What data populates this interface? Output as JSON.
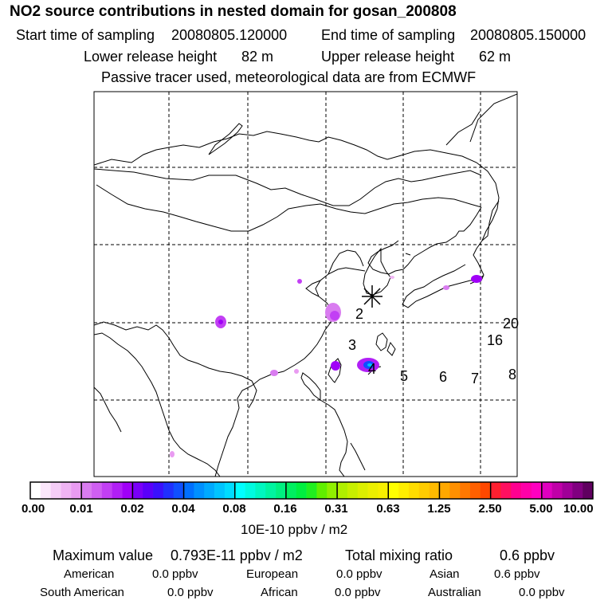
{
  "header": {
    "title": "NO2 source contributions in nested domain for gosan_200808",
    "start_time_label": "Start time of sampling",
    "start_time": "20080805.120000",
    "end_time_label": "End time of sampling",
    "end_time": "20080805.150000",
    "lower_height_label": "Lower release height",
    "lower_height": "82 m",
    "upper_height_label": "Upper release height",
    "upper_height": "62 m",
    "note": "Passive tracer used, meteorological data are from ECMWF"
  },
  "map": {
    "trajectory_markers": [
      "2",
      "3",
      "4",
      "5",
      "6",
      "7",
      "8",
      "16",
      "20"
    ],
    "receptor_symbol": "gosan-receptor-star"
  },
  "colorbar": {
    "labels": [
      "0.00",
      "0.01",
      "0.02",
      "0.04",
      "0.08",
      "0.16",
      "0.31",
      "0.63",
      "1.25",
      "2.50",
      "5.00",
      "10.00"
    ],
    "units": "10E-10 ppbv / m2",
    "colors": [
      [
        "#ffffff",
        "#fbe6fb",
        "#f5cdf7",
        "#efb4f3",
        "#e99bf1"
      ],
      [
        "#d97cf0",
        "#cf5ff2",
        "#c23ff4",
        "#b11ff6",
        "#a000f7"
      ],
      [
        "#7a00f8",
        "#5a00fa",
        "#3a10fc",
        "#2030fd",
        "#1050ff"
      ],
      [
        "#0070ff",
        "#0090ff",
        "#00aaff",
        "#00c4ff",
        "#00dcff"
      ],
      [
        "#00ffff",
        "#00fbe0",
        "#00f7c0",
        "#00f4a0",
        "#00f080"
      ],
      [
        "#00f060",
        "#00f040",
        "#20f020",
        "#60f000",
        "#90f000"
      ],
      [
        "#b0f000",
        "#c8f000",
        "#dcf000",
        "#ecf000",
        "#f8f000"
      ],
      [
        "#ffff00",
        "#ffee00",
        "#ffdd00",
        "#ffcc00",
        "#ffbb00"
      ],
      [
        "#ffa800",
        "#ff9000",
        "#ff7800",
        "#ff6000",
        "#ff4800"
      ],
      [
        "#ff2030",
        "#ff1060",
        "#ff0090",
        "#ff00a8",
        "#ff00c0"
      ],
      [
        "#e000c0",
        "#c000a8",
        "#a00098",
        "#800080",
        "#600060"
      ]
    ]
  },
  "stats": {
    "max_label": "Maximum value",
    "max_value": "0.793E-11 ppbv / m2",
    "total_label": "Total mixing ratio",
    "total_value": "0.6 ppbv",
    "regions": [
      {
        "name": "American",
        "value": "0.0 ppbv"
      },
      {
        "name": "European",
        "value": "0.0 ppbv"
      },
      {
        "name": "Asian",
        "value": "0.6 ppbv"
      },
      {
        "name": "South American",
        "value": "0.0 ppbv"
      },
      {
        "name": "African",
        "value": "0.0 ppbv"
      },
      {
        "name": "Australian",
        "value": "0.0 ppbv"
      }
    ]
  }
}
